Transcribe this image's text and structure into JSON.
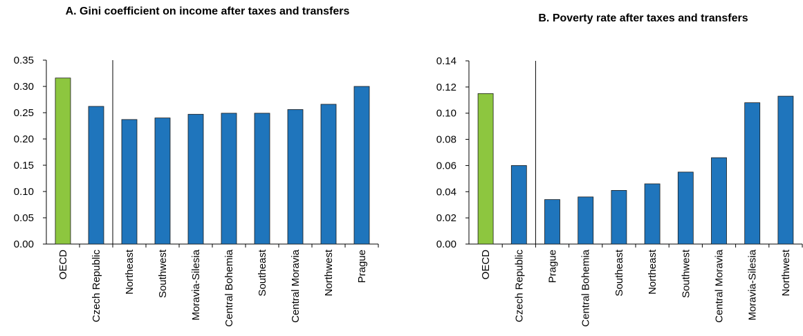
{
  "chart_data": [
    {
      "type": "bar",
      "title": "A. Gini coefficient on income after taxes and transfers",
      "categories": [
        "OECD",
        "Czech Republic",
        "Northeast",
        "Southwest",
        "Moravia-Silesia",
        "Central Bohemia",
        "Southeast",
        "Central Moravia",
        "Northwest",
        "Prague"
      ],
      "values": [
        0.316,
        0.262,
        0.237,
        0.24,
        0.247,
        0.249,
        0.249,
        0.256,
        0.266,
        0.3
      ],
      "colors": [
        "#8dc63f",
        "#1f75bc",
        "#1f75bc",
        "#1f75bc",
        "#1f75bc",
        "#1f75bc",
        "#1f75bc",
        "#1f75bc",
        "#1f75bc",
        "#1f75bc"
      ],
      "ylim": [
        0,
        0.35
      ],
      "yticks": [
        {
          "value": 0,
          "label": "0.00"
        },
        0.05,
        {
          "value": 0.1,
          "label": "0.10"
        },
        0.15,
        {
          "value": 0.2,
          "label": "0.20"
        },
        0.25,
        {
          "value": 0.3,
          "label": "0.30"
        },
        0.35
      ],
      "grid": false
    },
    {
      "type": "bar",
      "title": "B. Poverty rate after taxes and transfers",
      "categories": [
        "OECD",
        "Czech Republic",
        "Prague",
        "Central Bohemia",
        "Southeast",
        "Northeast",
        "Southwest",
        "Central Moravia",
        "Moravia-Silesia",
        "Northwest"
      ],
      "values": [
        0.115,
        0.06,
        0.034,
        0.036,
        0.041,
        0.046,
        0.055,
        0.066,
        0.108,
        0.113
      ],
      "colors": [
        "#8dc63f",
        "#1f75bc",
        "#1f75bc",
        "#1f75bc",
        "#1f75bc",
        "#1f75bc",
        "#1f75bc",
        "#1f75bc",
        "#1f75bc",
        "#1f75bc"
      ],
      "ylim": [
        0,
        0.14
      ],
      "yticks": [
        {
          "value": 0,
          "label": "0.00"
        },
        0.02,
        0.04,
        0.06,
        0.08,
        {
          "value": 0.1,
          "label": "0.10"
        },
        0.12,
        0.14
      ],
      "grid": false
    }
  ]
}
